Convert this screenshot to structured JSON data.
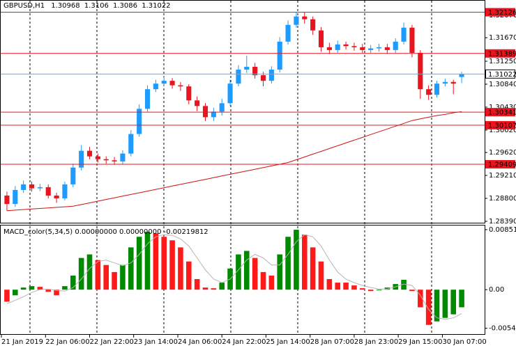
{
  "chart_data": [
    {
      "type": "candlestick",
      "title": "GBPUSD,H1",
      "xlim": [
        -0.5,
        55.5
      ],
      "xticks": [
        {
          "value": -0.67,
          "label": "21 Jan 2019"
        },
        {
          "value": 4.67,
          "label": "22 Jan 06:00"
        },
        {
          "value": 10.0,
          "label": "22 Jan 22:00"
        },
        {
          "value": 15.33,
          "label": "23 Jan 14:00"
        },
        {
          "value": 20.67,
          "label": "24 Jan 06:00"
        },
        {
          "value": 26.0,
          "label": "24 Jan 22:00"
        },
        {
          "value": 31.33,
          "label": "25 Jan 14:00"
        },
        {
          "value": 36.67,
          "label": "28 Jan 07:00"
        },
        {
          "value": 42.0,
          "label": "28 Jan 23:00"
        },
        {
          "value": 47.33,
          "label": "29 Jan 15:00"
        },
        {
          "value": 52.67,
          "label": "30 Jan 07:00"
        }
      ],
      "ylim": [
        1.28365,
        1.32344
      ],
      "yticks": [
        {
          "value": 1.3207,
          "label": "1.32070"
        },
        {
          "value": 1.3167,
          "label": "1.31670"
        },
        {
          "value": 1.3125,
          "label": "1.31250"
        },
        {
          "value": 1.3084,
          "label": "1.30840"
        },
        {
          "value": 1.3043,
          "label": "1.30430"
        },
        {
          "value": 1.3002,
          "label": "1.30020"
        },
        {
          "value": 1.2962,
          "label": "1.29620"
        },
        {
          "value": 1.2921,
          "label": "1.29210"
        },
        {
          "value": 1.288,
          "label": "1.28800"
        },
        {
          "value": 1.2839,
          "label": "1.28390"
        }
      ],
      "up_color": "#1e9bff",
      "down_color": "#e8141e",
      "open": [
        1.2885,
        1.287,
        1.2895,
        1.2905,
        1.2898,
        1.29,
        1.2885,
        1.288,
        1.2905,
        1.2935,
        1.2965,
        1.2955,
        1.295,
        1.2948,
        1.2946,
        1.296,
        1.2995,
        1.304,
        1.3075,
        1.3085,
        1.309,
        1.3082,
        1.308,
        1.3055,
        1.3045,
        1.3025,
        1.3035,
        1.305,
        1.3085,
        1.311,
        1.3115,
        1.31,
        1.309,
        1.311,
        1.316,
        1.319,
        1.3205,
        1.32,
        1.318,
        1.315,
        1.3145,
        1.3155,
        1.3152,
        1.315,
        1.3145,
        1.3148,
        1.315,
        1.3145,
        1.316,
        1.3185,
        1.314,
        1.3075,
        1.3065,
        1.3085,
        1.3088,
        1.30968
      ],
      "high": [
        1.2892,
        1.2902,
        1.2912,
        1.291,
        1.2906,
        1.2905,
        1.289,
        1.291,
        1.2942,
        1.2975,
        1.2972,
        1.296,
        1.2955,
        1.2954,
        1.2966,
        1.3002,
        1.3048,
        1.3082,
        1.3092,
        1.3098,
        1.3095,
        1.3088,
        1.3084,
        1.3062,
        1.305,
        1.3042,
        1.3058,
        1.3092,
        1.3118,
        1.3135,
        1.3122,
        1.3106,
        1.3116,
        1.3168,
        1.3198,
        1.3212,
        1.3212,
        1.3205,
        1.3186,
        1.3158,
        1.3162,
        1.316,
        1.3158,
        1.3156,
        1.3154,
        1.3156,
        1.3156,
        1.3166,
        1.3194,
        1.319,
        1.3145,
        1.3082,
        1.309,
        1.3094,
        1.3092,
        1.3106
      ],
      "low": [
        1.2858,
        1.2865,
        1.289,
        1.2892,
        1.2893,
        1.288,
        1.2872,
        1.2876,
        1.29,
        1.293,
        1.295,
        1.2944,
        1.2942,
        1.294,
        1.2941,
        1.2955,
        1.299,
        1.3035,
        1.307,
        1.308,
        1.3076,
        1.3072,
        1.3048,
        1.3036,
        1.3018,
        1.3018,
        1.3028,
        1.3045,
        1.308,
        1.3104,
        1.3094,
        1.308,
        1.3085,
        1.3105,
        1.3155,
        1.3185,
        1.3192,
        1.3172,
        1.3142,
        1.3138,
        1.314,
        1.3146,
        1.3144,
        1.314,
        1.314,
        1.3142,
        1.3138,
        1.314,
        1.3155,
        1.3132,
        1.3058,
        1.3056,
        1.306,
        1.308,
        1.3066,
        1.3086
      ],
      "close": [
        1.287,
        1.2895,
        1.2905,
        1.2898,
        1.29,
        1.2885,
        1.288,
        1.2905,
        1.2935,
        1.2965,
        1.2955,
        1.295,
        1.2948,
        1.2946,
        1.296,
        1.2995,
        1.304,
        1.3075,
        1.3085,
        1.309,
        1.3082,
        1.308,
        1.3055,
        1.3045,
        1.3025,
        1.3035,
        1.305,
        1.3085,
        1.311,
        1.3115,
        1.31,
        1.309,
        1.311,
        1.316,
        1.319,
        1.3205,
        1.32,
        1.318,
        1.315,
        1.3145,
        1.3155,
        1.3152,
        1.315,
        1.3145,
        1.3148,
        1.315,
        1.3145,
        1.316,
        1.3185,
        1.314,
        1.3075,
        1.3065,
        1.3085,
        1.3088,
        1.3085,
        1.31022
      ],
      "ma": {
        "color": "#d01010",
        "values": [
          1.2858,
          1.2859,
          1.286,
          1.2861,
          1.2862,
          1.2863,
          1.2864,
          1.2865,
          1.2866,
          1.2869,
          1.2872,
          1.2875,
          1.2878,
          1.2881,
          1.2884,
          1.2887,
          1.289,
          1.2893,
          1.2896,
          1.2899,
          1.2902,
          1.2905,
          1.2908,
          1.2911,
          1.2914,
          1.2917,
          1.292,
          1.2923,
          1.2926,
          1.2929,
          1.2932,
          1.2935,
          1.2938,
          1.2941,
          1.2944,
          1.2949,
          1.2954,
          1.2959,
          1.2964,
          1.2969,
          1.2974,
          1.2979,
          1.2984,
          1.2989,
          1.2994,
          1.2999,
          1.3004,
          1.3009,
          1.3014,
          1.3019,
          1.3022,
          1.3025,
          1.3028,
          1.303,
          1.3033,
          1.3035
        ]
      },
      "levels": [
        {
          "value": 1.32126,
          "color": "#e8141e"
        },
        {
          "value": 1.31389,
          "color": "#e8141e"
        },
        {
          "value": 1.30341,
          "color": "#e8141e"
        },
        {
          "value": 1.30107,
          "color": "#e8141e"
        },
        {
          "value": 1.29409,
          "color": "#e8141e"
        }
      ],
      "price_line_color": "#8da0b8"
    },
    {
      "type": "histogram",
      "title": "MACD_color(5,34,5) 0.00000000 0.00000000 -0.00219812",
      "xlim": [
        -0.5,
        55.5
      ],
      "ylim": [
        -0.0063,
        0.0092
      ],
      "yticks": [
        0.0085182,
        {
          "value": 0,
          "label": "0.00"
        },
        -0.005475
      ],
      "up_color": "#008a00",
      "down_color": "#ff1a1a",
      "signal_color": "#b4b4b4",
      "values": [
        -0.0017,
        -0.0008,
        0.0003,
        0.0005,
        0.0004,
        -0.0003,
        -0.0008,
        0.0005,
        0.002,
        0.0045,
        0.005,
        0.0042,
        0.0035,
        0.0025,
        0.0035,
        0.006,
        0.0075,
        0.0082,
        0.008,
        0.0075,
        0.007,
        0.006,
        0.004,
        0.0015,
        0.0003,
        0.0002,
        0.001,
        0.003,
        0.005,
        0.0055,
        0.0045,
        0.0025,
        0.002,
        0.005,
        0.0075,
        0.0085,
        0.0078,
        0.006,
        0.004,
        0.0015,
        0.001,
        0.001,
        0.0006,
        0.0002,
        -0.0002,
        -0.0001,
        0.0003,
        0.0008,
        0.0014,
        -0.0002,
        -0.0025,
        -0.005,
        -0.0045,
        -0.004,
        -0.0035,
        -0.0025
      ],
      "signal": [
        -0.002,
        -0.0015,
        -0.001,
        -0.0004,
        0,
        0.0001,
        -0.0001,
        -0.0002,
        0.0003,
        0.0015,
        0.003,
        0.004,
        0.0042,
        0.0038,
        0.0034,
        0.0038,
        0.005,
        0.0065,
        0.0075,
        0.0078,
        0.0077,
        0.0072,
        0.0062,
        0.0045,
        0.0028,
        0.0015,
        0.001,
        0.0015,
        0.0028,
        0.0042,
        0.005,
        0.0045,
        0.0035,
        0.0035,
        0.005,
        0.0068,
        0.0078,
        0.0075,
        0.0062,
        0.0042,
        0.0025,
        0.0015,
        0.001,
        0.0006,
        0.0003,
        0.0001,
        0.0001,
        0.0004,
        0.0008,
        0.0006,
        -0.0008,
        -0.0028,
        -0.004,
        -0.0042,
        -0.004,
        -0.0034
      ]
    }
  ]
}
